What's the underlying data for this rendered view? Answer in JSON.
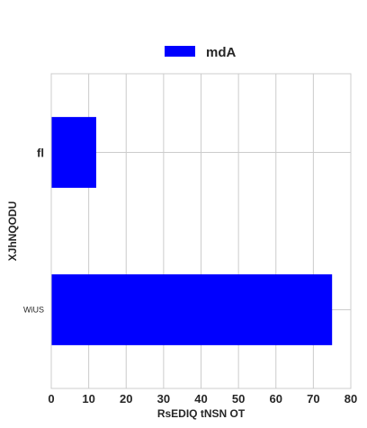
{
  "chart_data": {
    "type": "bar",
    "orientation": "horizontal",
    "categories": [
      "fl",
      "WiUS"
    ],
    "series": [
      {
        "name": "mdA",
        "values": [
          12,
          75
        ],
        "color": "#0000ff"
      }
    ],
    "xlabel": "RsEDIQ tNSN OT",
    "ylabel": "XJhNQODU",
    "xlim": [
      0,
      80
    ],
    "xticks": [
      0,
      10,
      20,
      30,
      40,
      50,
      60,
      70,
      80
    ],
    "grid": true,
    "legend": "top-center"
  }
}
